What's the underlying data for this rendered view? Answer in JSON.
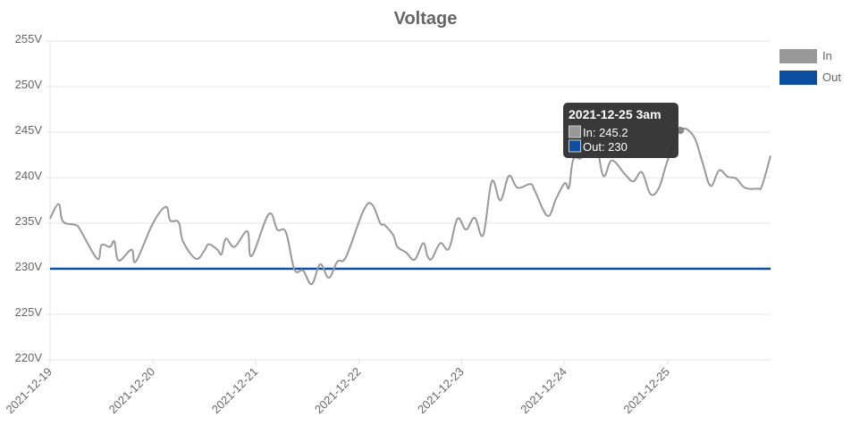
{
  "chart_data": {
    "type": "line",
    "title": "Voltage",
    "xlabel": "",
    "ylabel": "",
    "x_unit": "hours since 2021-12-19 00:00",
    "xlim": [
      0,
      168
    ],
    "ylim": [
      220,
      255
    ],
    "y_ticks": [
      "220V",
      "225V",
      "230V",
      "235V",
      "240V",
      "245V",
      "250V",
      "255V"
    ],
    "y_tick_values": [
      220,
      225,
      230,
      235,
      240,
      245,
      250,
      255
    ],
    "x_ticks": [
      "2021-12-19",
      "2021-12-20",
      "2021-12-21",
      "2021-12-22",
      "2021-12-23",
      "2021-12-24",
      "2021-12-25"
    ],
    "x_tick_values": [
      0,
      24,
      48,
      72,
      96,
      120,
      144
    ],
    "grid": true,
    "legend_position": "right",
    "series": [
      {
        "name": "In",
        "color": "#999999",
        "points": [
          [
            0,
            235.5
          ],
          [
            2,
            237.1
          ],
          [
            3,
            235.2
          ],
          [
            6,
            234.8
          ],
          [
            7,
            234.3
          ],
          [
            11,
            231.1
          ],
          [
            12,
            232.6
          ],
          [
            14,
            232.4
          ],
          [
            15,
            233
          ],
          [
            16,
            230.9
          ],
          [
            19,
            232.1
          ],
          [
            20,
            230.8
          ],
          [
            24,
            235
          ],
          [
            27,
            236.8
          ],
          [
            28,
            235.3
          ],
          [
            30,
            235.1
          ],
          [
            31,
            233
          ],
          [
            34,
            231.1
          ],
          [
            36,
            232
          ],
          [
            37,
            232.7
          ],
          [
            39,
            232.1
          ],
          [
            40,
            231.6
          ],
          [
            41,
            233.3
          ],
          [
            43,
            232.4
          ],
          [
            46,
            234.1
          ],
          [
            47,
            231.4
          ],
          [
            51,
            236
          ],
          [
            53,
            234.3
          ],
          [
            55,
            234
          ],
          [
            57,
            229.9
          ],
          [
            59,
            229.8
          ],
          [
            61,
            228.3
          ],
          [
            63,
            230.5
          ],
          [
            65,
            229
          ],
          [
            67,
            230.8
          ],
          [
            69,
            231.3
          ],
          [
            73,
            236.3
          ],
          [
            75,
            237.1
          ],
          [
            77,
            235
          ],
          [
            78,
            234.8
          ],
          [
            80,
            233.7
          ],
          [
            81,
            232.4
          ],
          [
            83,
            231.8
          ],
          [
            85,
            231
          ],
          [
            87,
            232.8
          ],
          [
            88,
            231.4
          ],
          [
            89,
            231.1
          ],
          [
            91,
            232.8
          ],
          [
            93,
            232.2
          ],
          [
            95,
            235.5
          ],
          [
            97,
            234.3
          ],
          [
            99,
            235.6
          ],
          [
            101,
            233.7
          ],
          [
            103,
            239.6
          ],
          [
            105,
            237.5
          ],
          [
            107,
            240.2
          ],
          [
            109,
            238.9
          ],
          [
            112,
            239.3
          ],
          [
            113,
            238.6
          ],
          [
            116,
            235.8
          ],
          [
            118,
            237.7
          ],
          [
            120,
            239.4
          ],
          [
            121,
            238.9
          ],
          [
            122,
            242
          ],
          [
            124,
            242.2
          ],
          [
            127,
            244.1
          ],
          [
            129,
            240.2
          ],
          [
            131,
            241.9
          ],
          [
            134,
            240.4
          ],
          [
            136,
            239.6
          ],
          [
            138,
            240.6
          ],
          [
            140,
            238.2
          ],
          [
            142,
            238.9
          ],
          [
            144,
            241.9
          ],
          [
            147,
            245.2
          ],
          [
            150,
            244.6
          ],
          [
            152,
            241.9
          ],
          [
            154,
            239.1
          ],
          [
            156,
            240.8
          ],
          [
            158,
            240.1
          ],
          [
            160,
            239.9
          ],
          [
            162,
            238.9
          ],
          [
            165,
            238.8
          ],
          [
            166,
            239.1
          ],
          [
            168,
            242.4
          ]
        ]
      },
      {
        "name": "Out",
        "color": "#0b4ea2",
        "points": [
          [
            0,
            230
          ],
          [
            168,
            230
          ]
        ]
      }
    ],
    "tooltip": {
      "title": "2021-12-25 3am",
      "lines": [
        "In: 245.2",
        "Out: 230"
      ],
      "x": 147
    }
  }
}
